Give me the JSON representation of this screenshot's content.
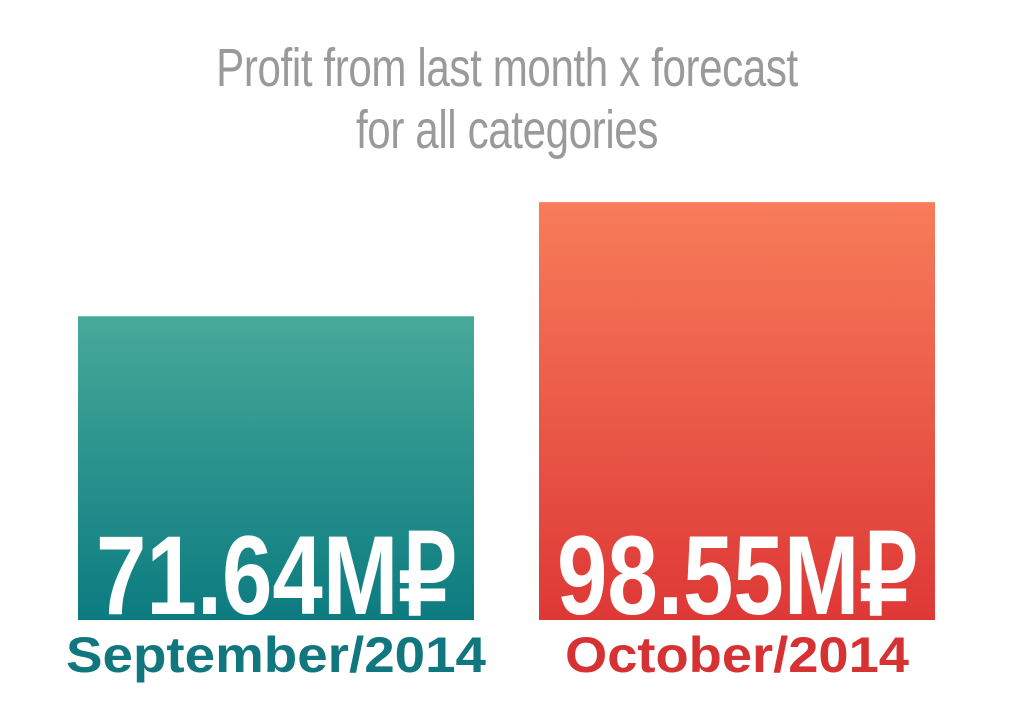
{
  "chart_data": {
    "type": "bar",
    "title_lines": [
      "Profit from last month x forecast",
      "for all categories"
    ],
    "categories": [
      "September/2014",
      "October/2014"
    ],
    "values": [
      71.64,
      98.55
    ],
    "value_labels": [
      "71.64M₽",
      "98.55M₽"
    ],
    "unit": "M₽",
    "colors": [
      {
        "top": "#47a999",
        "bottom": "#0c7b80",
        "label": "#11777e"
      },
      {
        "top": "#f77c5a",
        "bottom": "#de3836",
        "label": "#d63234"
      }
    ],
    "grid": false,
    "legend": "none"
  }
}
